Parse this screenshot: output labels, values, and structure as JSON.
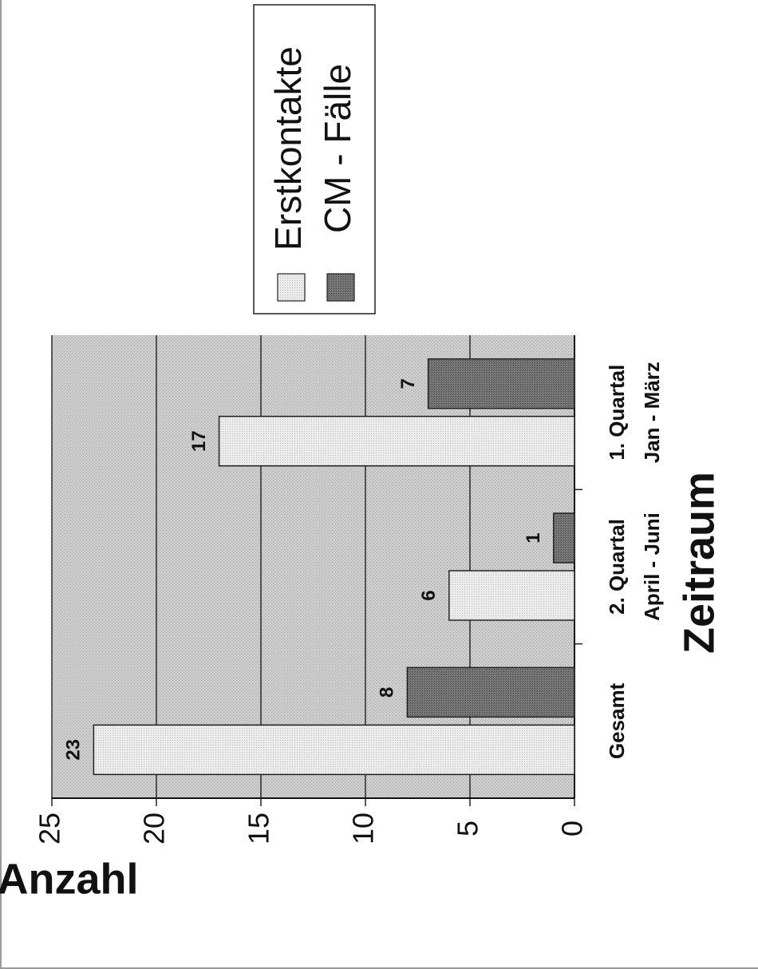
{
  "chart_data": {
    "type": "bar",
    "orientation": "rotated-90",
    "categories": [
      [
        "1. Quartal",
        "Jan - März"
      ],
      [
        "2. Quartal",
        "April - Juni"
      ],
      [
        "Gesamt"
      ]
    ],
    "series": [
      {
        "name": "Erstkontakte",
        "values": [
          17,
          6,
          23
        ],
        "labels": [
          "17",
          "6",
          "23"
        ],
        "color": "#e6e6e6"
      },
      {
        "name": "CM - Fälle",
        "values": [
          7,
          1,
          8
        ],
        "labels": [
          "7",
          "1",
          "8"
        ],
        "color": "#6f6f6f"
      }
    ],
    "xlabel": "Zeitraum",
    "ylabel": "Anzahl",
    "ylim": [
      0,
      25
    ],
    "yticks": [
      "0",
      "5",
      "10",
      "15",
      "20",
      "25"
    ],
    "grid": true,
    "legend_position": "top-right",
    "plot_background": "#c8c8c8"
  }
}
